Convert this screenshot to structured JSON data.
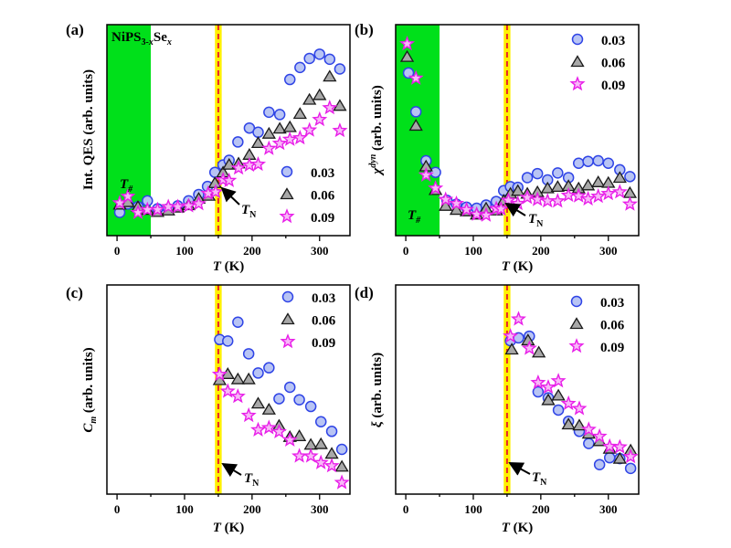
{
  "colors": {
    "s003_fill": "#b8c4f4",
    "s003_stroke": "#2f44e6",
    "s006_fill": "#a8a8a8",
    "s006_stroke": "#1a1a1a",
    "s009_fill": "#f8b8f8",
    "s009_stroke": "#e81ee8",
    "green_region": "#00e01a",
    "yellow_band": "#fff000",
    "tn_line": "#e8262a"
  },
  "legend": [
    "0.03",
    "0.06",
    "0.09"
  ],
  "compound": {
    "base": "NiPS",
    "sub1": "3-",
    "sub1_italic": "x",
    "mid": "Se",
    "sub2": "x"
  },
  "annotations": {
    "t_hash": "T",
    "t_hash_sub": "#",
    "t_n": "T",
    "t_n_sub": "N"
  },
  "chart_data": [
    {
      "panel": "(a)",
      "type": "scatter",
      "ylabel": "Int. QES (arb. units)",
      "xlabel": {
        "var": "T",
        "unit": " (K)"
      },
      "xticks": [
        "0",
        "100",
        "200",
        "300"
      ],
      "xlim": [
        -15,
        345
      ],
      "ylim": [
        0,
        10
      ],
      "green_region": [
        -15,
        50
      ],
      "tn_band": [
        145,
        155
      ],
      "tn": 150,
      "legend_placement": "bottom-right",
      "series": [
        {
          "name": "0.03",
          "marker": "circle",
          "points": [
            [
              4,
              1.1
            ],
            [
              16,
              1.5
            ],
            [
              31,
              1.37
            ],
            [
              45,
              1.65
            ],
            [
              60,
              1.27
            ],
            [
              76,
              1.27
            ],
            [
              90,
              1.41
            ],
            [
              106,
              1.65
            ],
            [
              121,
              1.95
            ],
            [
              134,
              2.33
            ],
            [
              145,
              3.0
            ],
            [
              157,
              3.35
            ],
            [
              166,
              3.57
            ],
            [
              179,
              4.44
            ],
            [
              196,
              5.1
            ],
            [
              209,
              4.9
            ],
            [
              225,
              5.85
            ],
            [
              241,
              5.74
            ],
            [
              256,
              7.4
            ],
            [
              271,
              7.97
            ],
            [
              285,
              8.4
            ],
            [
              300,
              8.6
            ],
            [
              315,
              8.36
            ],
            [
              330,
              7.9
            ]
          ]
        },
        {
          "name": "0.06",
          "marker": "triangle",
          "points": [
            [
              4,
              1.48
            ],
            [
              16,
              1.6
            ],
            [
              31,
              1.37
            ],
            [
              45,
              1.23
            ],
            [
              60,
              1.13
            ],
            [
              76,
              1.2
            ],
            [
              90,
              1.34
            ],
            [
              106,
              1.45
            ],
            [
              121,
              1.76
            ],
            [
              136,
              1.9
            ],
            [
              145,
              2.5
            ],
            [
              157,
              3.0
            ],
            [
              166,
              3.37
            ],
            [
              180,
              3.43
            ],
            [
              196,
              3.84
            ],
            [
              209,
              4.4
            ],
            [
              225,
              4.84
            ],
            [
              241,
              5.08
            ],
            [
              256,
              5.15
            ],
            [
              271,
              5.78
            ],
            [
              285,
              6.45
            ],
            [
              300,
              6.67
            ],
            [
              315,
              7.55
            ],
            [
              330,
              6.16
            ]
          ]
        },
        {
          "name": "0.09",
          "marker": "star",
          "points": [
            [
              4,
              1.55
            ],
            [
              16,
              1.86
            ],
            [
              31,
              1.09
            ],
            [
              45,
              1.23
            ],
            [
              60,
              1.23
            ],
            [
              76,
              1.37
            ],
            [
              90,
              1.37
            ],
            [
              106,
              1.41
            ],
            [
              121,
              1.51
            ],
            [
              135,
              2.0
            ],
            [
              146,
              2.07
            ],
            [
              157,
              2.64
            ],
            [
              166,
              2.61
            ],
            [
              180,
              3.2
            ],
            [
              196,
              3.34
            ],
            [
              209,
              3.38
            ],
            [
              225,
              4.13
            ],
            [
              241,
              4.37
            ],
            [
              256,
              4.56
            ],
            [
              271,
              4.63
            ],
            [
              285,
              5.0
            ],
            [
              300,
              5.5
            ],
            [
              315,
              6.06
            ],
            [
              330,
              4.98
            ]
          ]
        }
      ]
    },
    {
      "panel": "(b)",
      "type": "scatter",
      "ylabel": {
        "var": "χ",
        "sup": "dyn",
        "rest": " (arb. units)"
      },
      "xlabel": {
        "var": "T",
        "unit": " (K)"
      },
      "xticks": [
        "0",
        "100",
        "200",
        "300"
      ],
      "xlim": [
        -15,
        345
      ],
      "ylim": [
        0,
        10
      ],
      "green_region": [
        -15,
        50
      ],
      "tn_band": [
        145,
        155
      ],
      "tn": 150,
      "legend_placement": "top-right",
      "series": [
        {
          "name": "0.03",
          "marker": "circle",
          "points": [
            [
              4,
              7.71
            ],
            [
              15,
              5.87
            ],
            [
              30,
              3.55
            ],
            [
              44,
              3.0
            ],
            [
              61,
              1.67
            ],
            [
              75,
              1.49
            ],
            [
              90,
              1.35
            ],
            [
              105,
              1.3
            ],
            [
              119,
              1.45
            ],
            [
              134,
              1.62
            ],
            [
              145,
              2.13
            ],
            [
              155,
              2.32
            ],
            [
              166,
              2.29
            ],
            [
              180,
              2.75
            ],
            [
              195,
              2.94
            ],
            [
              210,
              2.64
            ],
            [
              225,
              2.97
            ],
            [
              241,
              2.75
            ],
            [
              256,
              3.43
            ],
            [
              270,
              3.52
            ],
            [
              285,
              3.55
            ],
            [
              300,
              3.43
            ],
            [
              317,
              3.12
            ],
            [
              332,
              2.8
            ]
          ]
        },
        {
          "name": "0.06",
          "marker": "triangle",
          "points": [
            [
              2,
              8.48
            ],
            [
              15,
              5.22
            ],
            [
              30,
              3.29
            ],
            [
              44,
              2.17
            ],
            [
              59,
              1.42
            ],
            [
              75,
              1.23
            ],
            [
              90,
              1.16
            ],
            [
              105,
              1.01
            ],
            [
              119,
              1.3
            ],
            [
              134,
              1.2
            ],
            [
              145,
              1.67
            ],
            [
              155,
              2.0
            ],
            [
              166,
              2.13
            ],
            [
              180,
              2.0
            ],
            [
              195,
              2.07
            ],
            [
              210,
              2.25
            ],
            [
              225,
              2.32
            ],
            [
              241,
              2.36
            ],
            [
              256,
              2.25
            ],
            [
              270,
              2.39
            ],
            [
              285,
              2.54
            ],
            [
              300,
              2.51
            ],
            [
              317,
              2.75
            ],
            [
              332,
              2.03
            ]
          ]
        },
        {
          "name": "0.09",
          "marker": "star",
          "points": [
            [
              2,
              9.09
            ],
            [
              15,
              7.46
            ],
            [
              30,
              2.87
            ],
            [
              44,
              2.25
            ],
            [
              59,
              1.71
            ],
            [
              75,
              1.52
            ],
            [
              90,
              1.23
            ],
            [
              105,
              1.01
            ],
            [
              119,
              0.97
            ],
            [
              134,
              1.28
            ],
            [
              141,
              1.26
            ],
            [
              152,
              1.67
            ],
            [
              166,
              1.52
            ],
            [
              180,
              1.81
            ],
            [
              195,
              1.71
            ],
            [
              210,
              1.64
            ],
            [
              225,
              1.64
            ],
            [
              241,
              1.91
            ],
            [
              256,
              1.88
            ],
            [
              270,
              1.74
            ],
            [
              285,
              1.86
            ],
            [
              300,
              1.99
            ],
            [
              317,
              2.07
            ],
            [
              332,
              1.49
            ]
          ]
        }
      ]
    },
    {
      "panel": "(c)",
      "type": "scatter",
      "ylabel": {
        "var": "C",
        "sub": "m",
        "rest": " (arb. units)"
      },
      "xlabel": {
        "var": "T",
        "unit": " (K)"
      },
      "xticks": [
        "0",
        "100",
        "200",
        "300"
      ],
      "xlim": [
        -15,
        345
      ],
      "ylim": [
        0,
        10
      ],
      "tn_band": [
        145,
        155
      ],
      "tn": 150,
      "legend_placement": "top-right",
      "series": [
        {
          "name": "0.03",
          "marker": "circle",
          "points": [
            [
              152,
              7.39
            ],
            [
              164,
              7.32
            ],
            [
              179,
              8.22
            ],
            [
              195,
              6.71
            ],
            [
              209,
              5.79
            ],
            [
              225,
              6.04
            ],
            [
              240,
              4.56
            ],
            [
              256,
              5.11
            ],
            [
              270,
              4.51
            ],
            [
              287,
              4.19
            ],
            [
              302,
              3.46
            ],
            [
              318,
              3.0
            ],
            [
              333,
              2.14
            ]
          ]
        },
        {
          "name": "0.06",
          "marker": "triangle",
          "points": [
            [
              152,
              5.46
            ],
            [
              164,
              5.75
            ],
            [
              179,
              5.5
            ],
            [
              195,
              5.5
            ],
            [
              209,
              4.34
            ],
            [
              225,
              4.05
            ],
            [
              240,
              3.28
            ],
            [
              256,
              2.74
            ],
            [
              270,
              2.78
            ],
            [
              287,
              2.37
            ],
            [
              302,
              2.4
            ],
            [
              318,
              1.94
            ],
            [
              333,
              1.32
            ]
          ]
        },
        {
          "name": "0.09",
          "marker": "star",
          "points": [
            [
              152,
              5.72
            ],
            [
              164,
              4.92
            ],
            [
              179,
              4.67
            ],
            [
              195,
              3.76
            ],
            [
              209,
              3.07
            ],
            [
              225,
              3.17
            ],
            [
              240,
              2.98
            ],
            [
              256,
              2.59
            ],
            [
              270,
              1.82
            ],
            [
              287,
              1.82
            ],
            [
              302,
              1.5
            ],
            [
              318,
              1.35
            ],
            [
              333,
              0.55
            ]
          ]
        }
      ]
    },
    {
      "panel": "(d)",
      "type": "scatter",
      "ylabel": {
        "var": "ξ",
        "rest": " (arb. units)"
      },
      "xlabel": {
        "var": "T",
        "unit": " (K)"
      },
      "xticks": [
        "0",
        "100",
        "200",
        "300"
      ],
      "xlim": [
        -15,
        345
      ],
      "ylim": [
        0,
        10
      ],
      "tn_band": [
        145,
        155
      ],
      "tn": 150,
      "legend_placement": "top-right",
      "series": [
        {
          "name": "0.03",
          "marker": "circle",
          "points": [
            [
              155,
              7.33
            ],
            [
              167,
              7.47
            ],
            [
              183,
              7.55
            ],
            [
              196,
              4.89
            ],
            [
              211,
              4.6
            ],
            [
              226,
              4.02
            ],
            [
              241,
              3.48
            ],
            [
              257,
              3.0
            ],
            [
              271,
              2.42
            ],
            [
              287,
              1.41
            ],
            [
              302,
              1.74
            ],
            [
              317,
              1.7
            ],
            [
              333,
              1.23
            ]
          ]
        },
        {
          "name": "0.06",
          "marker": "triangle",
          "points": [
            [
              157,
              6.92
            ],
            [
              181,
              7.36
            ],
            [
              197,
              6.78
            ],
            [
              211,
              4.5
            ],
            [
              226,
              4.72
            ],
            [
              241,
              3.34
            ],
            [
              257,
              3.29
            ],
            [
              271,
              2.9
            ],
            [
              287,
              2.54
            ],
            [
              302,
              2.18
            ],
            [
              317,
              1.7
            ],
            [
              333,
              2.1
            ]
          ]
        },
        {
          "name": "0.09",
          "marker": "star",
          "points": [
            [
              155,
              7.55
            ],
            [
              167,
              8.37
            ],
            [
              183,
              6.97
            ],
            [
              196,
              5.33
            ],
            [
              211,
              5.11
            ],
            [
              226,
              5.41
            ],
            [
              241,
              4.33
            ],
            [
              257,
              4.09
            ],
            [
              271,
              3.09
            ],
            [
              287,
              2.76
            ],
            [
              302,
              2.28
            ],
            [
              317,
              2.25
            ],
            [
              333,
              1.79
            ]
          ]
        }
      ]
    }
  ]
}
